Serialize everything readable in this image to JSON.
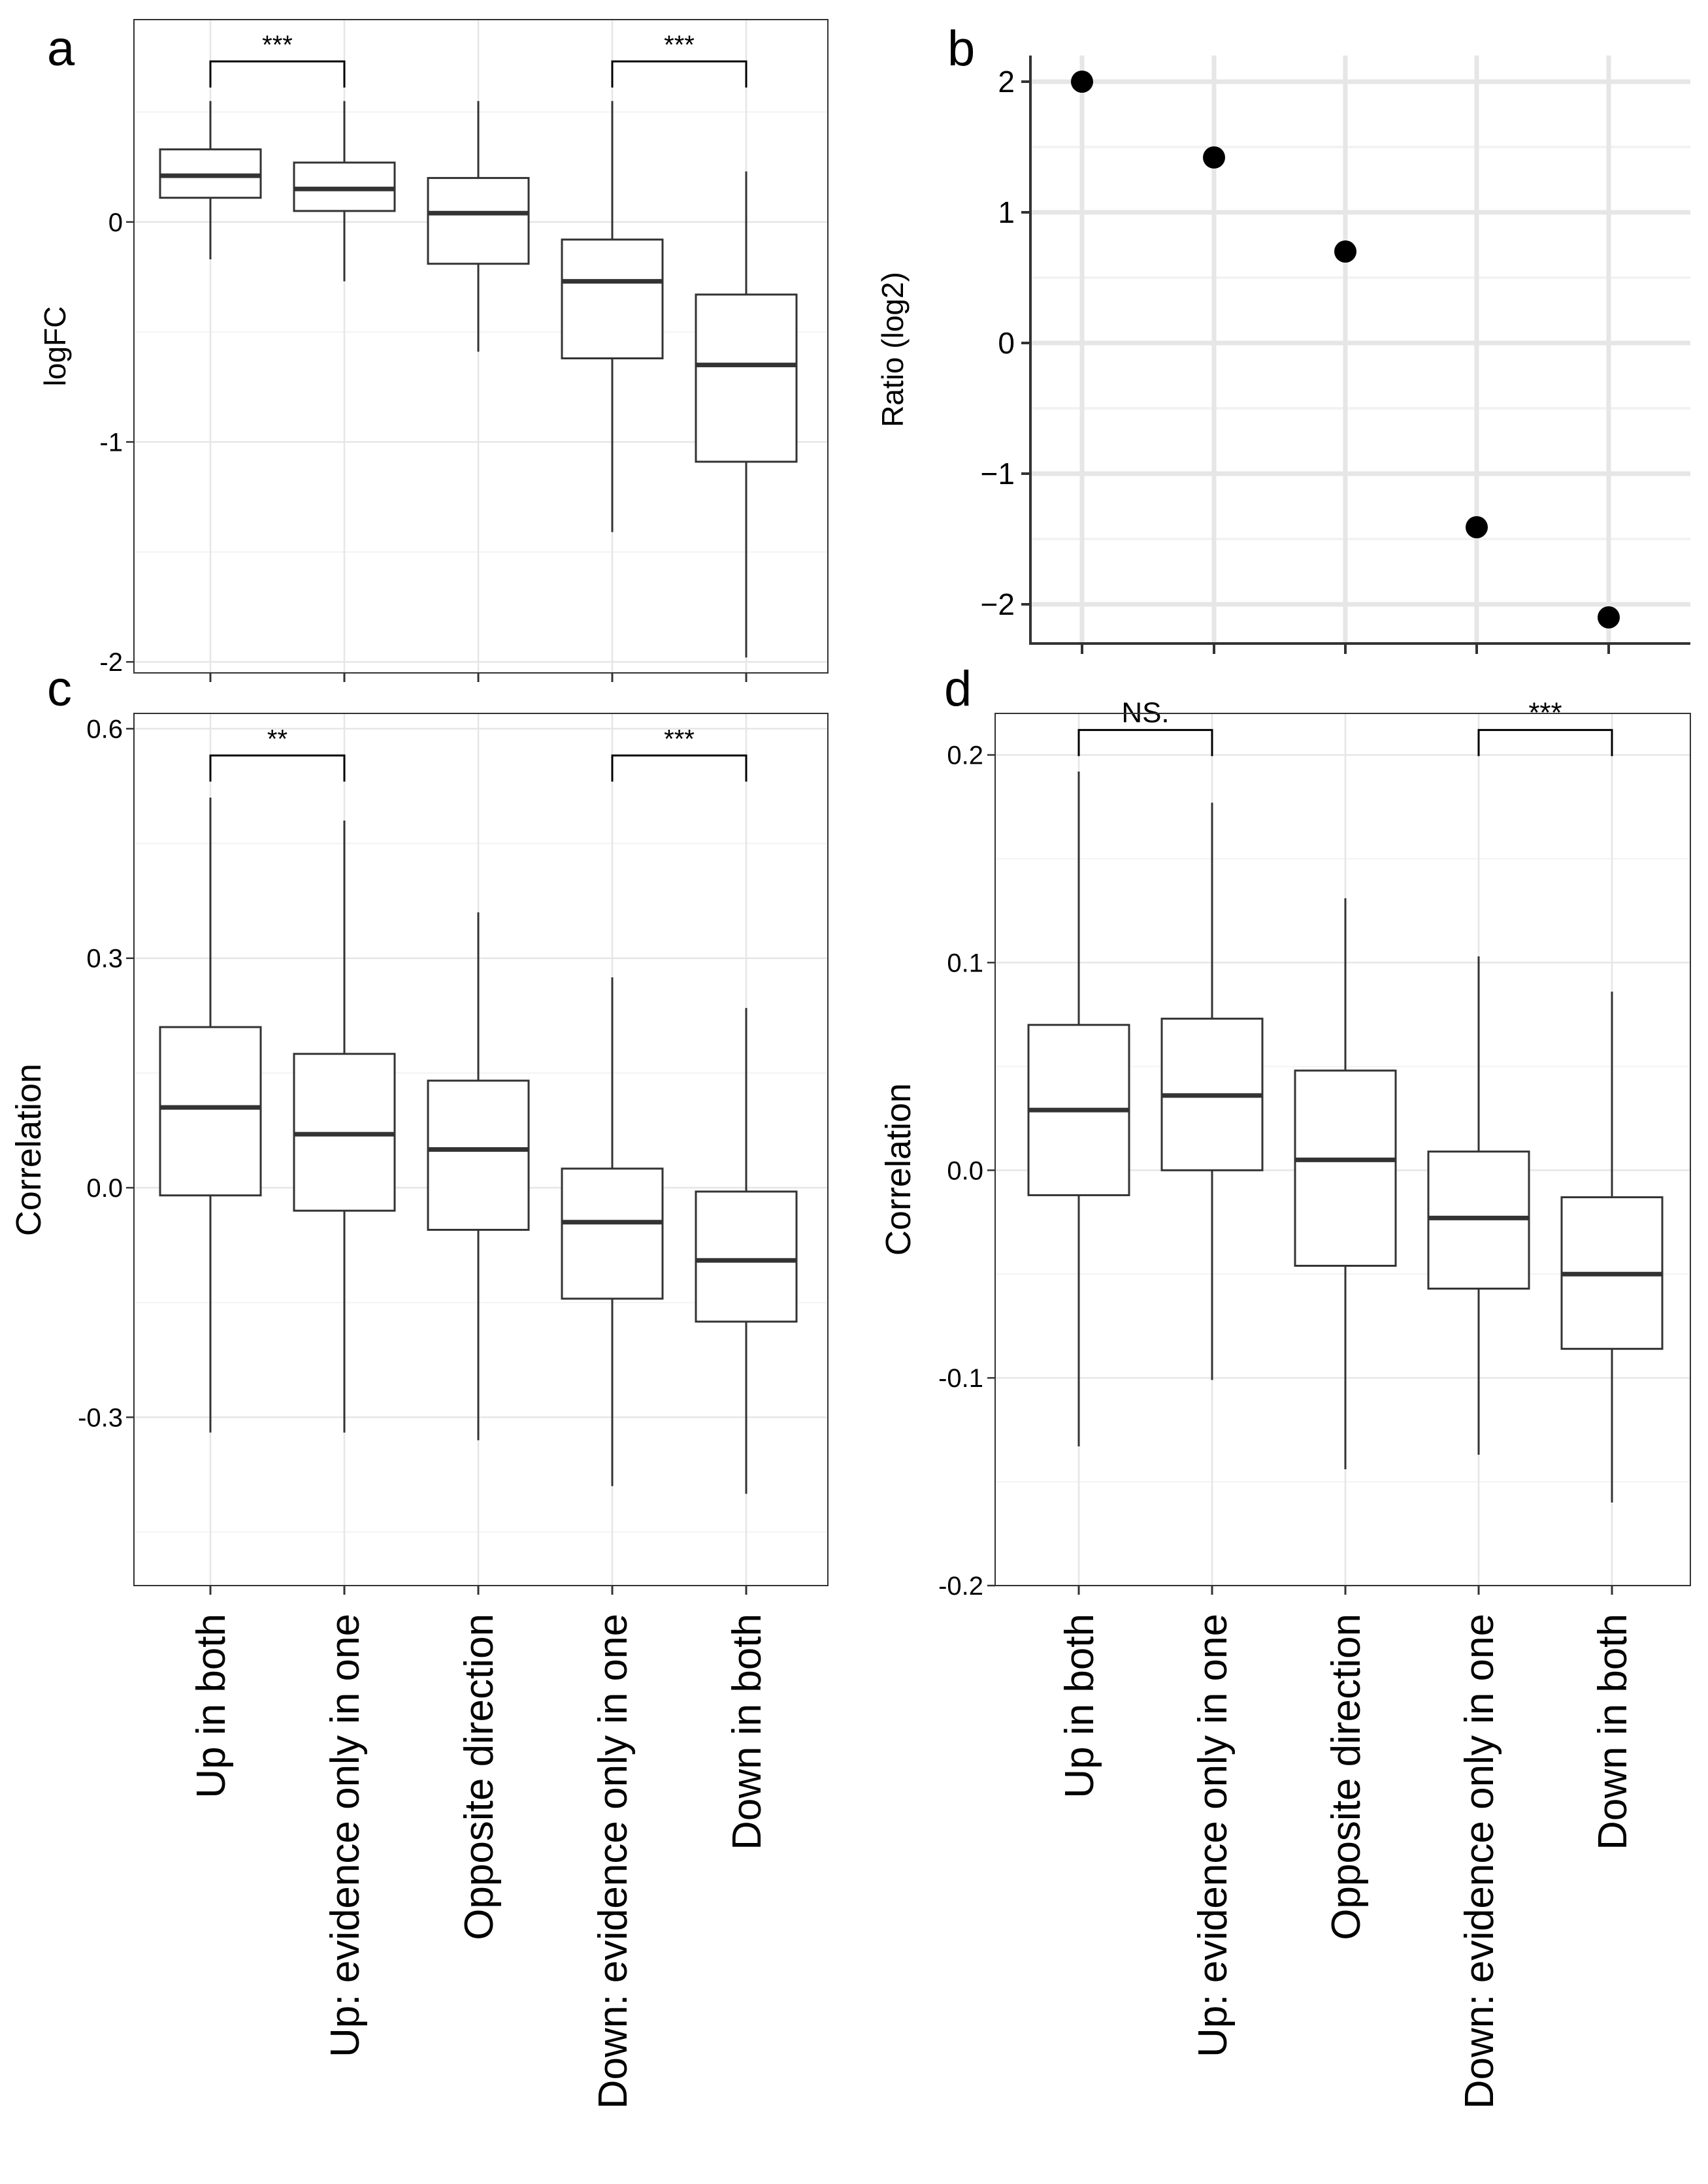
{
  "figure": {
    "categories": [
      "Up in both",
      "Up: evidence only in one",
      "Opposite direction",
      "Down: evidence only in one",
      "Down in both"
    ],
    "colors": {
      "grid_major": "#e6e6e6",
      "grid_minor": "#f3f3f3",
      "box_line": "#333333",
      "point": "#000000",
      "frame": "#333333"
    }
  },
  "chart_data": [
    {
      "panel": "a",
      "type": "box",
      "ylabel": "logFC",
      "ylim": [
        -2.05,
        0.92
      ],
      "yticks": [
        0,
        -1,
        -2
      ],
      "ytick_labels": [
        "0",
        "-1",
        "-2"
      ],
      "boxes": [
        {
          "category": "Up in both",
          "whisker_low": -0.17,
          "q1": 0.11,
          "median": 0.21,
          "q3": 0.33,
          "whisker_high": 0.55
        },
        {
          "category": "Up: evidence only in one",
          "whisker_low": -0.27,
          "q1": 0.05,
          "median": 0.15,
          "q3": 0.27,
          "whisker_high": 0.55
        },
        {
          "category": "Opposite direction",
          "whisker_low": -0.59,
          "q1": -0.19,
          "median": 0.04,
          "q3": 0.2,
          "whisker_high": 0.55
        },
        {
          "category": "Down: evidence only in one",
          "whisker_low": -1.41,
          "q1": -0.62,
          "median": -0.27,
          "q3": -0.08,
          "whisker_high": 0.55
        },
        {
          "category": "Down in both",
          "whisker_low": -1.98,
          "q1": -1.09,
          "median": -0.65,
          "q3": -0.33,
          "whisker_high": 0.23
        }
      ],
      "comparisons": [
        {
          "from": 0,
          "to": 1,
          "label": "***",
          "y": 0.73
        },
        {
          "from": 3,
          "to": 4,
          "label": "***",
          "y": 0.73
        }
      ]
    },
    {
      "panel": "b",
      "type": "scatter",
      "ylabel": "Ratio (log2)",
      "ylim": [
        -2.3,
        2.2
      ],
      "yticks": [
        2,
        1,
        0,
        -1,
        -2
      ],
      "ytick_labels": [
        "2",
        "1",
        "0",
        "−1",
        "−2"
      ],
      "values": [
        2.0,
        1.42,
        0.7,
        -1.41,
        -2.1
      ]
    },
    {
      "panel": "c",
      "type": "box",
      "ylabel": "Correlation",
      "ylim": [
        -0.52,
        0.62
      ],
      "yticks": [
        0.6,
        0.3,
        0.0,
        -0.3
      ],
      "ytick_labels": [
        "0.6",
        "0.3",
        "0.0",
        "-0.3"
      ],
      "boxes": [
        {
          "category": "Up in both",
          "whisker_low": -0.32,
          "q1": -0.01,
          "median": 0.105,
          "q3": 0.21,
          "whisker_high": 0.51
        },
        {
          "category": "Up: evidence only in one",
          "whisker_low": -0.32,
          "q1": -0.03,
          "median": 0.07,
          "q3": 0.175,
          "whisker_high": 0.48
        },
        {
          "category": "Opposite direction",
          "whisker_low": -0.33,
          "q1": -0.055,
          "median": 0.05,
          "q3": 0.14,
          "whisker_high": 0.36
        },
        {
          "category": "Down: evidence only in one",
          "whisker_low": -0.39,
          "q1": -0.145,
          "median": -0.045,
          "q3": 0.025,
          "whisker_high": 0.275
        },
        {
          "category": "Down in both",
          "whisker_low": -0.4,
          "q1": -0.175,
          "median": -0.095,
          "q3": -0.005,
          "whisker_high": 0.235
        }
      ],
      "comparisons": [
        {
          "from": 0,
          "to": 1,
          "label": "**",
          "y": 0.565
        },
        {
          "from": 3,
          "to": 4,
          "label": "***",
          "y": 0.565
        }
      ]
    },
    {
      "panel": "d",
      "type": "box",
      "ylabel": "Correlation",
      "ylim": [
        -0.2,
        0.22
      ],
      "yticks": [
        0.2,
        0.1,
        0.0,
        -0.1,
        -0.2
      ],
      "ytick_labels": [
        "0.2",
        "0.1",
        "0.0",
        "-0.1",
        "-0.2"
      ],
      "boxes": [
        {
          "category": "Up in both",
          "whisker_low": -0.133,
          "q1": -0.012,
          "median": 0.029,
          "q3": 0.07,
          "whisker_high": 0.192
        },
        {
          "category": "Up: evidence only in one",
          "whisker_low": -0.101,
          "q1": 0.0,
          "median": 0.036,
          "q3": 0.073,
          "whisker_high": 0.177
        },
        {
          "category": "Opposite direction",
          "whisker_low": -0.144,
          "q1": -0.046,
          "median": 0.005,
          "q3": 0.048,
          "whisker_high": 0.131
        },
        {
          "category": "Down: evidence only in one",
          "whisker_low": -0.137,
          "q1": -0.057,
          "median": -0.023,
          "q3": 0.009,
          "whisker_high": 0.103
        },
        {
          "category": "Down in both",
          "whisker_low": -0.16,
          "q1": -0.086,
          "median": -0.05,
          "q3": -0.013,
          "whisker_high": 0.086
        }
      ],
      "comparisons": [
        {
          "from": 0,
          "to": 1,
          "label": "NS.",
          "y": 0.212
        },
        {
          "from": 3,
          "to": 4,
          "label": "***",
          "y": 0.212
        }
      ]
    }
  ]
}
